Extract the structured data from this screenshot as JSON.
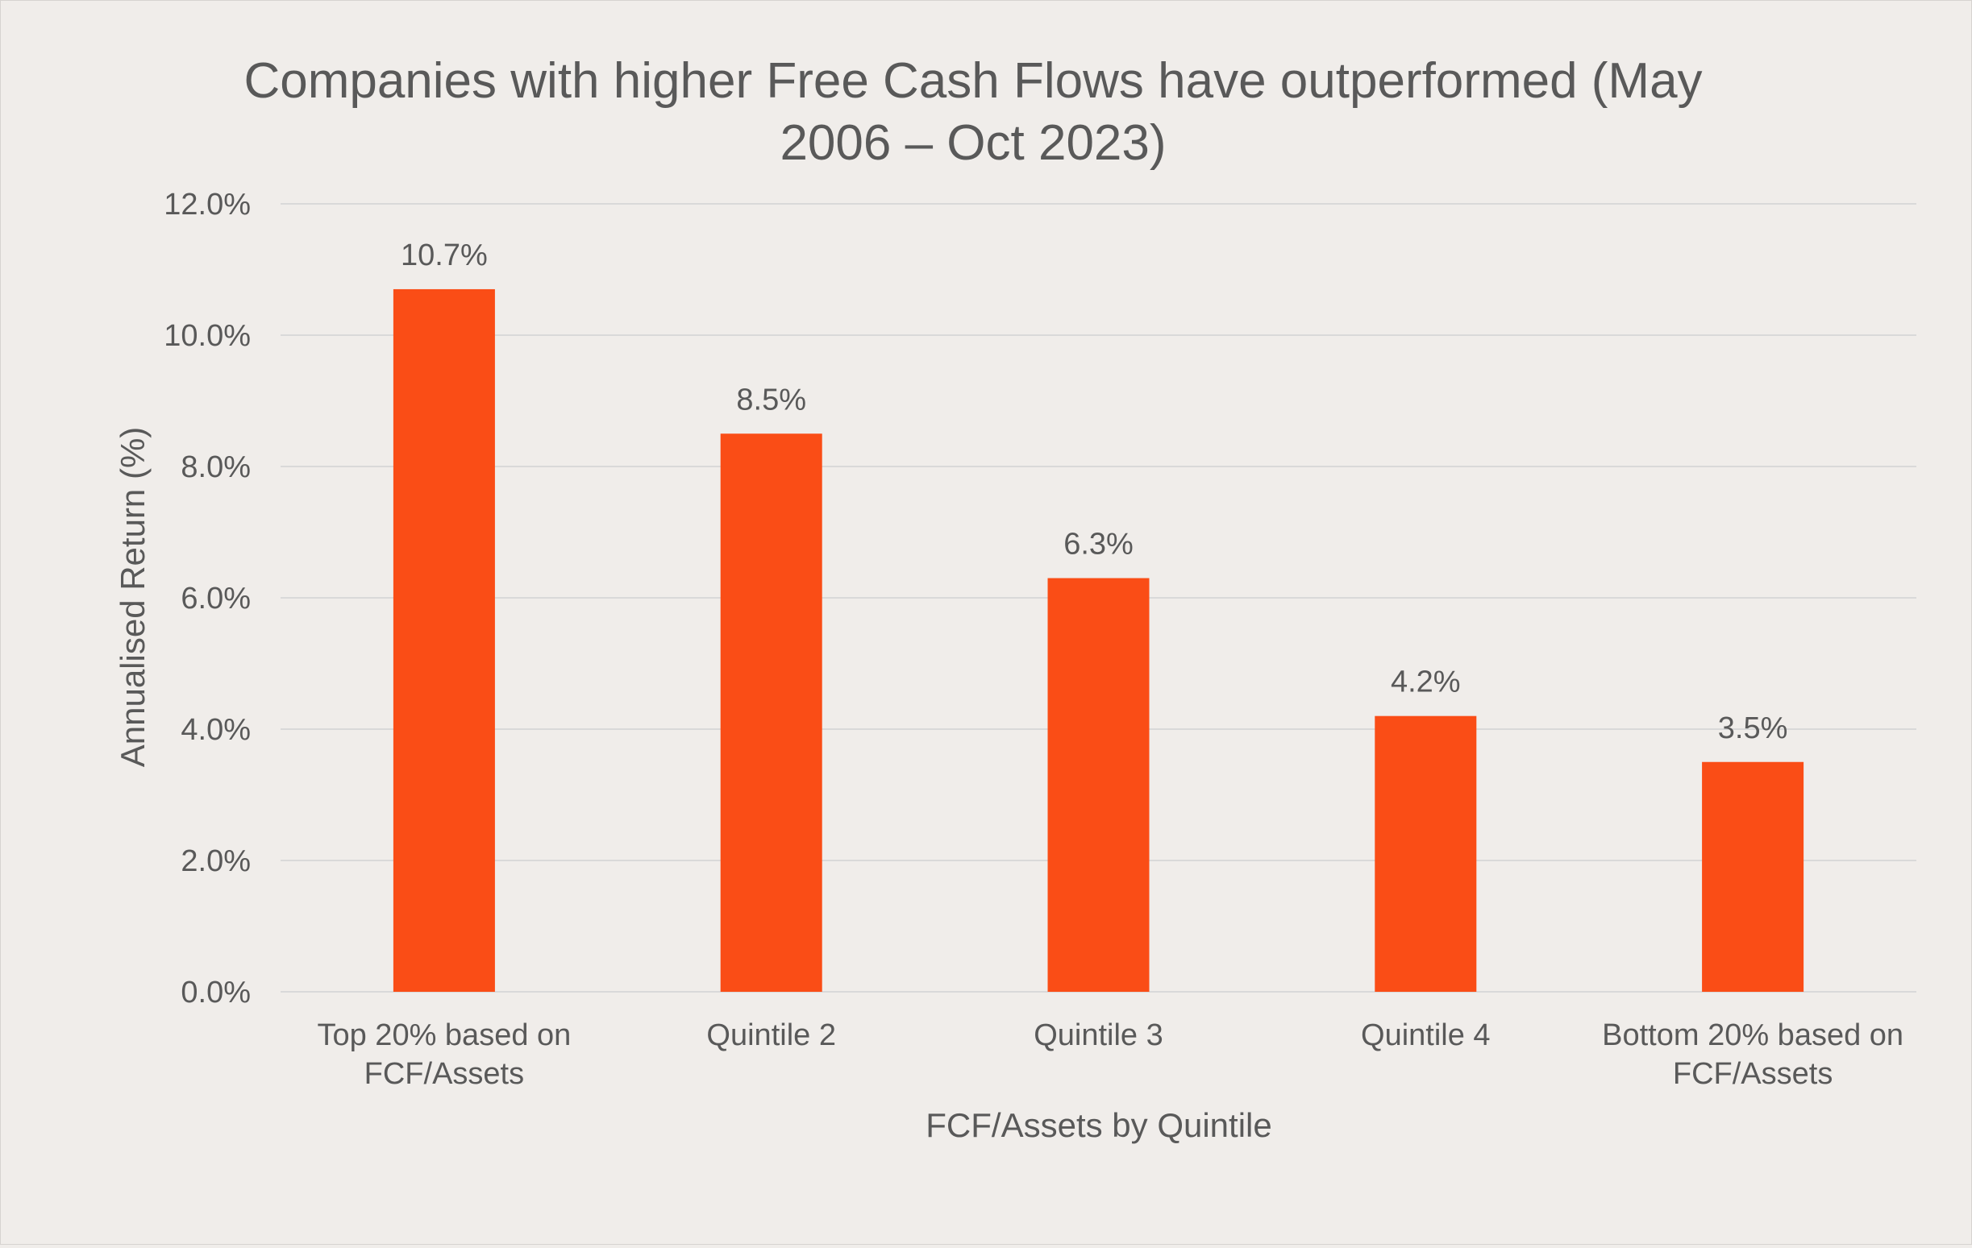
{
  "chart_data": {
    "type": "bar",
    "title_lines": [
      "Companies with higher Free Cash Flows have outperformed (May",
      "2006 – Oct 2023)"
    ],
    "categories": [
      [
        "Top 20% based on",
        "FCF/Assets"
      ],
      [
        "Quintile 2"
      ],
      [
        "Quintile 3"
      ],
      [
        "Quintile 4"
      ],
      [
        "Bottom 20% based on",
        "FCF/Assets"
      ]
    ],
    "values": [
      10.7,
      8.5,
      6.3,
      4.2,
      3.5
    ],
    "data_labels": [
      "10.7%",
      "8.5%",
      "6.3%",
      "4.2%",
      "3.5%"
    ],
    "xlabel": "FCF/Assets by Quintile",
    "ylabel": "Annualised Return (%)",
    "ylim": [
      0,
      12
    ],
    "yticks": [
      0,
      2,
      4,
      6,
      8,
      10,
      12
    ],
    "ytick_labels": [
      "0.0%",
      "2.0%",
      "4.0%",
      "6.0%",
      "8.0%",
      "10.0%",
      "12.0%"
    ],
    "grid": true,
    "legend": "none",
    "colors": {
      "bar": "#fa4d16",
      "text": "#595959",
      "gridline": "#d9d9d9",
      "background": "#f0edea"
    }
  }
}
